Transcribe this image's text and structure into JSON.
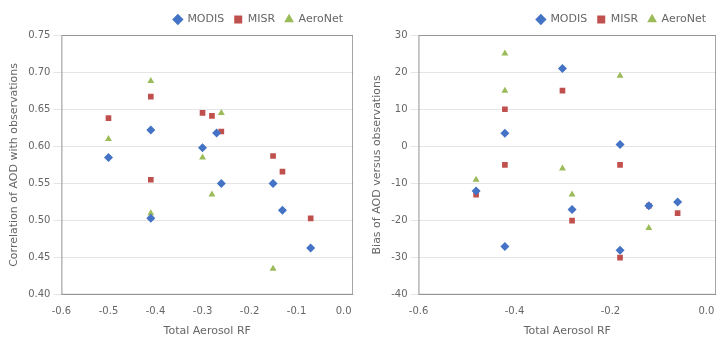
{
  "chart_data": [
    {
      "type": "scatter",
      "x_label": "Total Aerosol RF",
      "y_label": "Correlation of AOD with observations",
      "xlim": [
        -0.6,
        0.02
      ],
      "ylim": [
        0.4,
        0.75
      ],
      "xticks": [
        -0.6,
        -0.5,
        -0.4,
        -0.3,
        -0.2,
        -0.1,
        {
          "value": 0.0,
          "label": "0.0"
        }
      ],
      "yticks": [
        {
          "value": 0.4,
          "label": "0.40"
        },
        0.45,
        {
          "value": 0.5,
          "label": "0.50"
        },
        0.55,
        {
          "value": 0.6,
          "label": "0.60"
        },
        0.65,
        {
          "value": 0.7,
          "label": "0.70"
        },
        0.75
      ],
      "grid": "y",
      "legend": "upper right",
      "series": [
        {
          "name": "MODIS",
          "color": "#4472C4",
          "marker": "diamond",
          "x": [
            -0.5,
            -0.41,
            -0.41,
            -0.3,
            -0.27,
            -0.26,
            -0.15,
            -0.13,
            -0.07
          ],
          "values": [
            0.585,
            0.622,
            0.503,
            0.598,
            0.618,
            0.55,
            0.55,
            0.514,
            0.463
          ]
        },
        {
          "name": "MISR",
          "color": "#C0504D",
          "marker": "square",
          "x": [
            -0.5,
            -0.41,
            -0.41,
            -0.3,
            -0.28,
            -0.26,
            -0.15,
            -0.13,
            -0.07
          ],
          "values": [
            0.638,
            0.667,
            0.555,
            0.645,
            0.641,
            0.62,
            0.587,
            0.566,
            0.503
          ]
        },
        {
          "name": "AeroNet",
          "color": "#9BBB59",
          "marker": "triangle",
          "x": [
            -0.5,
            -0.41,
            -0.41,
            -0.3,
            -0.28,
            -0.26,
            -0.15
          ],
          "values": [
            0.61,
            0.688,
            0.51,
            0.585,
            0.535,
            0.645,
            0.435
          ]
        }
      ]
    },
    {
      "type": "scatter",
      "x_label": "Total Aerosol RF",
      "y_label": "Bias of AOD versus observations",
      "xlim": [
        -0.6,
        0.02
      ],
      "ylim": [
        -40,
        30
      ],
      "xticks": [
        -0.6,
        -0.4,
        -0.2,
        {
          "value": 0.0,
          "label": "0.0"
        }
      ],
      "yticks": [
        -40,
        -30,
        -20,
        -10,
        0,
        10,
        20,
        30
      ],
      "grid": "y",
      "legend": "upper right",
      "series": [
        {
          "name": "MODIS",
          "color": "#4472C4",
          "marker": "diamond",
          "x": [
            -0.48,
            -0.42,
            -0.42,
            -0.3,
            -0.28,
            -0.18,
            -0.18,
            -0.12,
            -0.06
          ],
          "values": [
            -12,
            3.5,
            -27,
            21,
            -17,
            0.5,
            -28,
            -16,
            -15
          ]
        },
        {
          "name": "MISR",
          "color": "#C0504D",
          "marker": "square",
          "x": [
            -0.48,
            -0.42,
            -0.42,
            -0.3,
            -0.28,
            -0.18,
            -0.18,
            -0.12,
            -0.06
          ],
          "values": [
            -13,
            10,
            -5,
            15,
            -20,
            -5,
            -30,
            -16,
            -18
          ]
        },
        {
          "name": "AeroNet",
          "color": "#9BBB59",
          "marker": "triangle",
          "x": [
            -0.48,
            -0.42,
            -0.42,
            -0.3,
            -0.28,
            -0.18,
            -0.12
          ],
          "values": [
            -9,
            15,
            25,
            -6,
            -13,
            19,
            -22
          ]
        }
      ]
    }
  ]
}
